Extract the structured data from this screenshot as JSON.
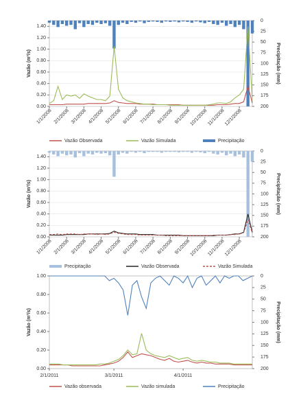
{
  "chart_data": [
    {
      "type": "line",
      "y_label": "Vazão (m³/s)",
      "y2_label": "Precipitação (mm)",
      "y2_inverted": true,
      "grid": true,
      "x_rotated": true,
      "categories": [
        "1/1/2008",
        null,
        null,
        null,
        "2/1/2008",
        null,
        null,
        null,
        "3/1/2008",
        null,
        null,
        null,
        "4/1/2008",
        null,
        null,
        null,
        "5/1/2008",
        null,
        null,
        null,
        "6/1/2008",
        null,
        null,
        null,
        "7/1/2008",
        null,
        null,
        null,
        "8/1/2008",
        null,
        null,
        null,
        "9/1/2008",
        null,
        null,
        null,
        "10/1/2008",
        null,
        null,
        null,
        "11/1/2008",
        null,
        null,
        null,
        "12/1/2008",
        null,
        null,
        null
      ],
      "ylim": [
        0,
        1.5
      ],
      "yticks": [
        {
          "value": 0,
          "label": "0.00"
        },
        {
          "value": 0.2,
          "label": "0.20"
        },
        {
          "value": 0.4,
          "label": "0.40"
        },
        {
          "value": 0.6,
          "label": "0.60"
        },
        {
          "value": 0.8,
          "label": "0.80"
        },
        {
          "value": 1.0,
          "label": "1.00"
        },
        {
          "value": 1.2,
          "label": "1.20"
        },
        {
          "value": 1.4,
          "label": "1.40"
        }
      ],
      "y2lim": [
        0,
        200
      ],
      "y2ticks": [
        0,
        25,
        50,
        75,
        100,
        125,
        150,
        175,
        200
      ],
      "series": [
        {
          "name": "Precipitação",
          "color": "#4f81bd",
          "axis": "y2",
          "style": "bar",
          "values": [
            5,
            10,
            15,
            8,
            12,
            10,
            20,
            6,
            15,
            8,
            10,
            5,
            8,
            6,
            12,
            65,
            10,
            5,
            8,
            3,
            5,
            2,
            6,
            3,
            2,
            3,
            5,
            2,
            3,
            2,
            4,
            2,
            3,
            5,
            2,
            4,
            6,
            3,
            8,
            10,
            5,
            12,
            8,
            15,
            10,
            20,
            200,
            30
          ]
        },
        {
          "name": "Vazão Observada",
          "color": "#c0504d",
          "values": [
            0.03,
            0.03,
            0.03,
            0.03,
            0.04,
            0.04,
            0.04,
            0.04,
            0.04,
            0.05,
            0.05,
            0.05,
            0.05,
            0.05,
            0.06,
            0.1,
            0.07,
            0.06,
            0.05,
            0.05,
            0.05,
            0.04,
            0.04,
            0.04,
            0.04,
            0.03,
            0.03,
            0.03,
            0.03,
            0.03,
            0.03,
            0.02,
            0.02,
            0.02,
            0.02,
            0.02,
            0.02,
            0.02,
            0.02,
            0.03,
            0.03,
            0.03,
            0.04,
            0.05,
            0.05,
            0.08,
            0.35,
            0.06
          ]
        },
        {
          "name": "Vazão Simulada",
          "color": "#9bbb59",
          "values": [
            0.05,
            0.1,
            0.35,
            0.12,
            0.2,
            0.18,
            0.2,
            0.14,
            0.22,
            0.18,
            0.15,
            0.12,
            0.12,
            0.1,
            0.18,
            1.05,
            0.3,
            0.15,
            0.1,
            0.08,
            0.06,
            0.05,
            0.04,
            0.04,
            0.03,
            0.03,
            0.03,
            0.03,
            0.02,
            0.02,
            0.02,
            0.02,
            0.02,
            0.02,
            0.02,
            0.02,
            0.02,
            0.03,
            0.04,
            0.06,
            0.06,
            0.05,
            0.08,
            0.15,
            0.2,
            0.3,
            1.4,
            0.1
          ]
        }
      ],
      "legend_order": [
        1,
        2,
        0
      ]
    },
    {
      "type": "line",
      "y_label": "Vazão (m³/s)",
      "y2_label": "Precipitação (mm)",
      "y2_inverted": true,
      "grid": true,
      "x_rotated": true,
      "categories": [
        "1/1/2008",
        null,
        null,
        null,
        "2/1/2008",
        null,
        null,
        null,
        "3/1/2008",
        null,
        null,
        null,
        "4/1/2008",
        null,
        null,
        null,
        "5/1/2008",
        null,
        null,
        null,
        "6/1/2008",
        null,
        null,
        null,
        "7/1/2008",
        null,
        null,
        null,
        "8/1/2008",
        null,
        null,
        null,
        "9/1/2008",
        null,
        null,
        null,
        "10/1/2008",
        null,
        null,
        null,
        "11/1/2008",
        null,
        null,
        null,
        "12/1/2008",
        null,
        null,
        null
      ],
      "ylim": [
        0,
        1.5
      ],
      "yticks": [
        {
          "value": 0,
          "label": "0.00"
        },
        {
          "value": 0.2,
          "label": "0.20"
        },
        {
          "value": 0.4,
          "label": "0.40"
        },
        {
          "value": 0.6,
          "label": "0.60"
        },
        {
          "value": 0.8,
          "label": "0.80"
        },
        {
          "value": 1.0,
          "label": "1.00"
        },
        {
          "value": 1.2,
          "label": "1.20"
        },
        {
          "value": 1.4,
          "label": "1.40"
        }
      ],
      "y2lim": [
        0,
        200
      ],
      "y2ticks": [
        0,
        25,
        50,
        75,
        100,
        125,
        150,
        175,
        200
      ],
      "series": [
        {
          "name": "Precipitação",
          "color": "#a7c0de",
          "axis": "y2",
          "style": "bar",
          "values": [
            4,
            8,
            12,
            6,
            10,
            8,
            15,
            5,
            12,
            6,
            8,
            4,
            6,
            5,
            10,
            60,
            8,
            4,
            6,
            2,
            4,
            2,
            5,
            2,
            2,
            2,
            4,
            2,
            2,
            2,
            3,
            2,
            2,
            4,
            2,
            3,
            5,
            2,
            6,
            8,
            4,
            10,
            6,
            12,
            8,
            15,
            200,
            25
          ]
        },
        {
          "name": "Vazão Observada",
          "color": "#222222",
          "values": [
            0.03,
            0.03,
            0.03,
            0.03,
            0.04,
            0.04,
            0.04,
            0.04,
            0.04,
            0.05,
            0.05,
            0.05,
            0.05,
            0.05,
            0.06,
            0.1,
            0.07,
            0.06,
            0.05,
            0.05,
            0.05,
            0.04,
            0.04,
            0.04,
            0.04,
            0.03,
            0.03,
            0.03,
            0.03,
            0.03,
            0.03,
            0.02,
            0.02,
            0.02,
            0.02,
            0.02,
            0.02,
            0.02,
            0.02,
            0.03,
            0.03,
            0.03,
            0.04,
            0.05,
            0.05,
            0.08,
            0.4,
            0.08
          ]
        },
        {
          "name": "Vazão Simulada",
          "color": "#c0504d",
          "dash": true,
          "values": [
            0.04,
            0.04,
            0.05,
            0.04,
            0.05,
            0.05,
            0.05,
            0.04,
            0.05,
            0.05,
            0.05,
            0.04,
            0.05,
            0.04,
            0.05,
            0.08,
            0.06,
            0.05,
            0.04,
            0.04,
            0.04,
            0.03,
            0.03,
            0.03,
            0.03,
            0.03,
            0.03,
            0.02,
            0.02,
            0.02,
            0.02,
            0.02,
            0.02,
            0.02,
            0.02,
            0.02,
            0.02,
            0.02,
            0.03,
            0.03,
            0.03,
            0.03,
            0.04,
            0.04,
            0.05,
            0.07,
            0.3,
            0.07
          ]
        }
      ],
      "legend_order": [
        0,
        1,
        2
      ]
    },
    {
      "type": "line",
      "y_label": "Vazão (m³/s)",
      "y2_label": "Precipitação (mm)",
      "y2_inverted": true,
      "grid": false,
      "x_rotated": false,
      "categories": [
        "2/1/2011",
        null,
        null,
        null,
        null,
        null,
        null,
        null,
        null,
        null,
        null,
        null,
        null,
        null,
        "3/1/2011",
        null,
        null,
        null,
        null,
        null,
        null,
        null,
        null,
        null,
        null,
        null,
        null,
        null,
        null,
        "4/1/2011",
        null,
        null,
        null,
        null,
        null,
        null,
        null,
        null,
        null,
        null,
        null,
        null,
        null,
        null,
        null
      ],
      "ylim": [
        0,
        1.0
      ],
      "yticks": [
        {
          "value": 0,
          "label": "0.00"
        },
        {
          "value": 0.2,
          "label": "0.20"
        },
        {
          "value": 0.4,
          "label": "0.40"
        },
        {
          "value": 0.6,
          "label": "0.60"
        },
        {
          "value": 0.8,
          "label": "0.80"
        },
        {
          "value": 1.0,
          "label": "1.00"
        }
      ],
      "y2lim": [
        0,
        200
      ],
      "y2ticks": [
        0,
        25,
        50,
        75,
        100,
        125,
        150,
        175,
        200
      ],
      "series": [
        {
          "name": "Vazão observada",
          "color": "#c0504d",
          "values": [
            0.04,
            0.04,
            0.04,
            0.04,
            0.04,
            0.03,
            0.03,
            0.03,
            0.03,
            0.03,
            0.03,
            0.03,
            0.04,
            0.05,
            0.06,
            0.08,
            0.12,
            0.18,
            0.12,
            0.14,
            0.16,
            0.15,
            0.14,
            0.12,
            0.1,
            0.09,
            0.11,
            0.08,
            0.07,
            0.08,
            0.09,
            0.07,
            0.06,
            0.07,
            0.06,
            0.06,
            0.05,
            0.05,
            0.05,
            0.05,
            0.04,
            0.04,
            0.04,
            0.04,
            0.04
          ]
        },
        {
          "name": "Vazão simulada",
          "color": "#9bbb59",
          "values": [
            0.05,
            0.05,
            0.05,
            0.04,
            0.04,
            0.04,
            0.04,
            0.04,
            0.04,
            0.04,
            0.04,
            0.05,
            0.05,
            0.06,
            0.08,
            0.1,
            0.14,
            0.2,
            0.15,
            0.16,
            0.38,
            0.2,
            0.16,
            0.14,
            0.13,
            0.12,
            0.14,
            0.12,
            0.1,
            0.11,
            0.12,
            0.09,
            0.08,
            0.09,
            0.08,
            0.07,
            0.07,
            0.06,
            0.06,
            0.06,
            0.05,
            0.05,
            0.05,
            0.05,
            0.05
          ]
        },
        {
          "name": "Precipitação",
          "color": "#4f81bd",
          "axis": "y2",
          "style": "line",
          "values": [
            0,
            0,
            0,
            0,
            0,
            0,
            0,
            0,
            0,
            0,
            0,
            0,
            0,
            10,
            5,
            15,
            30,
            85,
            20,
            10,
            45,
            70,
            15,
            5,
            0,
            10,
            20,
            0,
            5,
            15,
            0,
            25,
            5,
            0,
            20,
            10,
            0,
            15,
            0,
            5,
            0,
            0,
            10,
            5,
            0
          ]
        }
      ],
      "legend_order": [
        0,
        1,
        2
      ]
    }
  ]
}
